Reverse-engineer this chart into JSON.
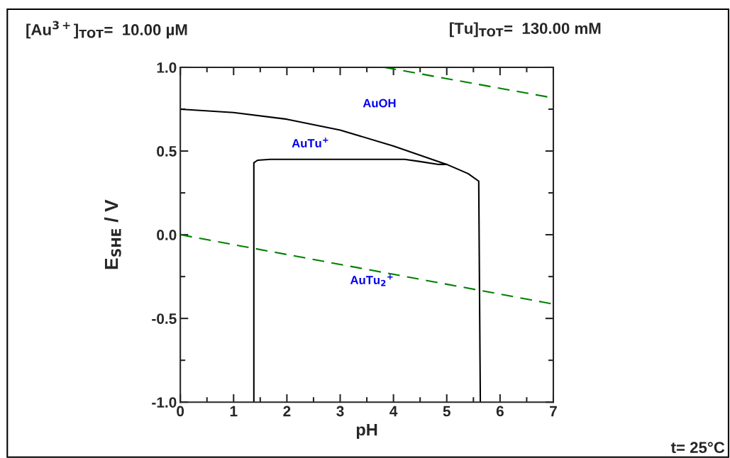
{
  "chart_data": {
    "type": "line",
    "xlabel": "pH",
    "ylabel": "E$_{SHE}$ / V",
    "xlim": [
      0,
      7
    ],
    "xticks": [
      0,
      1,
      2,
      3,
      4,
      5,
      6,
      7
    ],
    "ylim": [
      -1.0,
      1.0
    ],
    "yticks": [
      {
        "value": -1.0,
        "label": "-1.0"
      },
      {
        "value": -0.5,
        "label": "-0.5"
      },
      {
        "value": 0.0,
        "label": "0.0"
      },
      {
        "value": 0.5,
        "label": "0.5"
      },
      {
        "value": 1.0,
        "label": "1.0"
      }
    ],
    "grid": false,
    "legend": false,
    "series": [
      {
        "color": "#000000",
        "line_style": "solid",
        "x": [
          0,
          1,
          2,
          3,
          4,
          4.5,
          5,
          5.4,
          5.6,
          5.63
        ],
        "values": [
          0.75,
          0.73,
          0.69,
          0.625,
          0.53,
          0.475,
          0.42,
          0.365,
          0.32,
          -1.0
        ]
      },
      {
        "color": "#000000",
        "line_style": "solid",
        "x": [
          1.38,
          1.38,
          1.45,
          1.69,
          4.21,
          4.5,
          4.85,
          5.0
        ],
        "values": [
          -1.0,
          0.43,
          0.445,
          0.45,
          0.45,
          0.437,
          0.42,
          0.42
        ]
      },
      {
        "color": "#008000",
        "line_style": "dashed",
        "x": [
          0,
          7
        ],
        "values": [
          0.0,
          -0.414
        ]
      },
      {
        "color": "#008000",
        "line_style": "dashed",
        "x": [
          3.83,
          7
        ],
        "values": [
          1.0,
          0.817
        ]
      }
    ],
    "annotations": [
      "[Au$^{3+}$]$_{TOT}$=  10.00 µM",
      "[Tu]$_{TOT}$=  130.00 mM",
      "t= 25°C",
      "AuOH",
      "AuTu$^{+}$",
      "AuTu$_{2}$$^{+}$"
    ]
  }
}
